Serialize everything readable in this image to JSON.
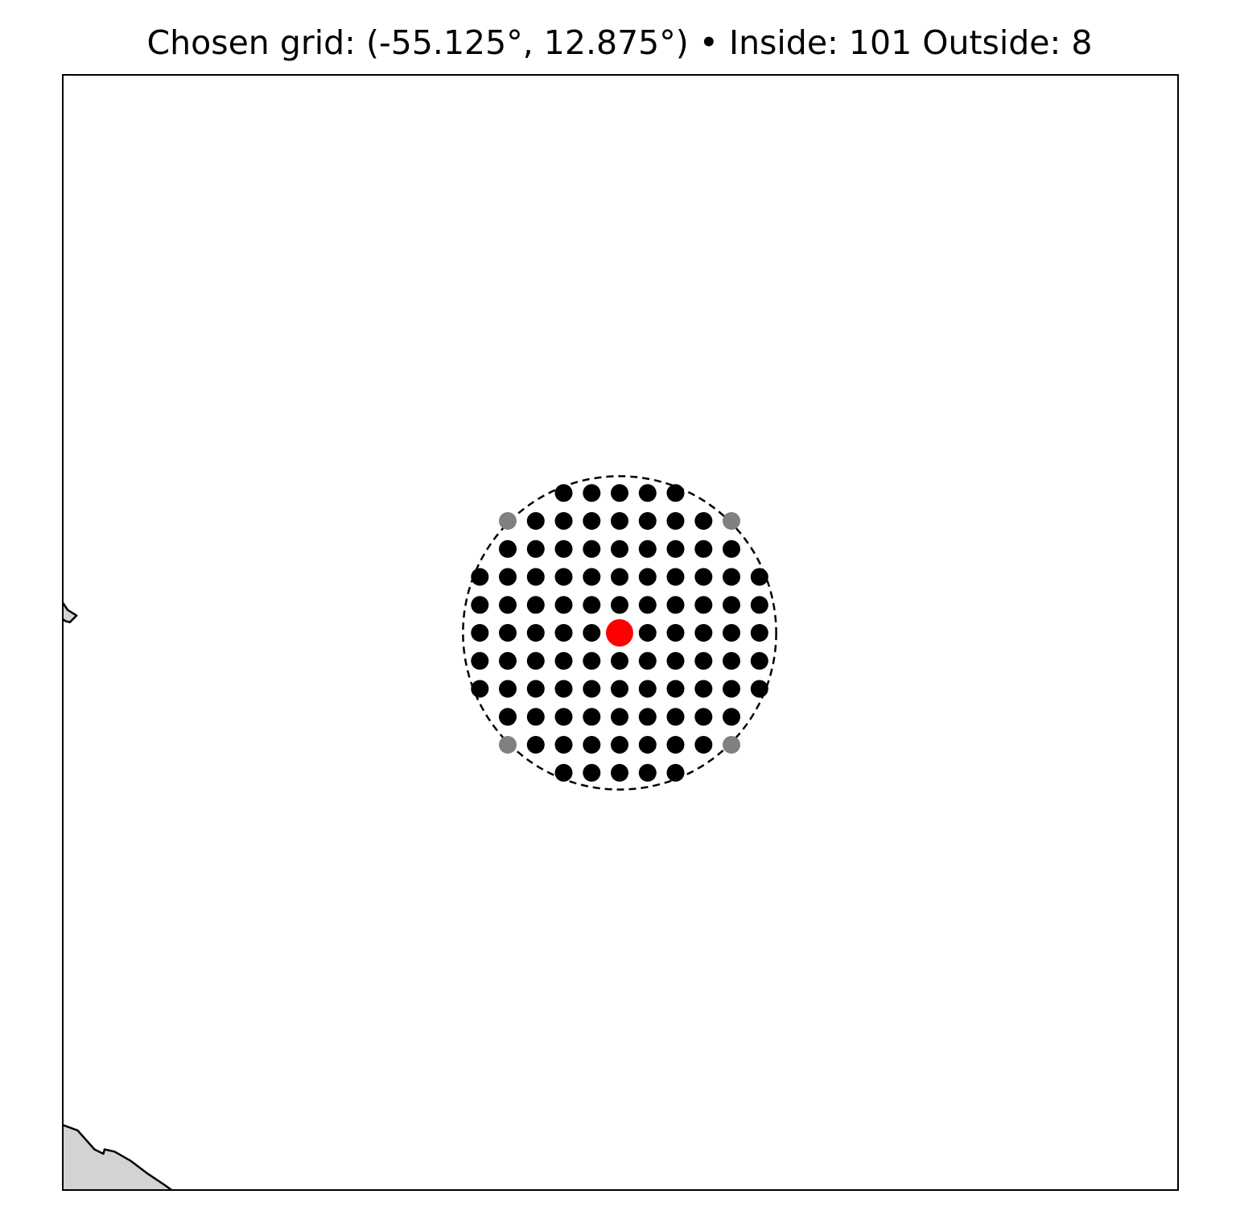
{
  "title": "Chosen grid: (-55.125°, 12.875°)  •  Inside: 101  Outside: 8",
  "chosen_grid": {
    "lon": -55.125,
    "lat": 12.875
  },
  "counts": {
    "inside": 101,
    "outside": 8
  },
  "grid": {
    "spacing_deg": 0.25,
    "offsets": [
      -5,
      -4,
      -3,
      -2,
      -1,
      0,
      1,
      2,
      3,
      4,
      5
    ],
    "radius_deg": 1.4
  },
  "colors": {
    "inside_point": "#000000",
    "outside_point": "#808080",
    "center_point": "#ff0000",
    "circle": "#000000",
    "land_fill": "#d3d3d3",
    "land_edge": "#000000",
    "frame": "#000000",
    "background": "#ffffff"
  },
  "circle_style": "dashed",
  "land_features": [
    {
      "name": "island",
      "coords": [
        [
          -60.14,
          13.12
        ],
        [
          -60.1,
          13.14
        ],
        [
          -60.06,
          13.08
        ],
        [
          -59.98,
          13.03
        ],
        [
          -60.04,
          12.97
        ],
        [
          -60.08,
          12.98
        ],
        [
          -60.12,
          13.01
        ],
        [
          -60.13,
          13.05
        ],
        [
          -60.14,
          13.12
        ]
      ]
    },
    {
      "name": "coast",
      "coords": [
        [
          -60.11,
          8.48
        ],
        [
          -59.97,
          8.43
        ],
        [
          -59.82,
          8.26
        ],
        [
          -59.74,
          8.22
        ],
        [
          -59.73,
          8.26
        ],
        [
          -59.64,
          8.24
        ],
        [
          -59.5,
          8.16
        ],
        [
          -59.34,
          8.04
        ],
        [
          -59.19,
          7.94
        ],
        [
          -58.94,
          7.76
        ],
        [
          -58.94,
          7.73
        ],
        [
          -60.11,
          7.73
        ]
      ]
    }
  ]
}
